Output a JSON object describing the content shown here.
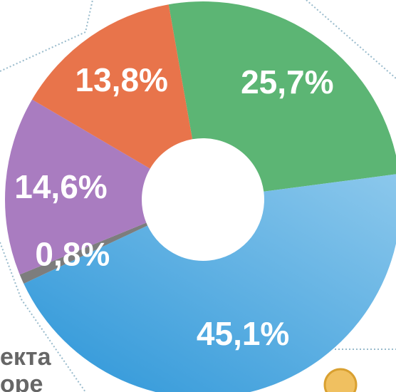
{
  "chart_data": {
    "type": "donut",
    "categories": [
      null,
      null,
      null,
      null,
      null
    ],
    "values": [
      25.7,
      45.1,
      0.8,
      14.6,
      13.8
    ],
    "value_labels": [
      "25,7%",
      "45,1%",
      "0,8%",
      "14,6%",
      "13,8%"
    ],
    "colors": [
      "#5cb574",
      "#3a9fdc",
      "#7d7d7d",
      "#a97cc0",
      "#e8744b"
    ]
  },
  "fragments": [
    "екта",
    "оре"
  ]
}
